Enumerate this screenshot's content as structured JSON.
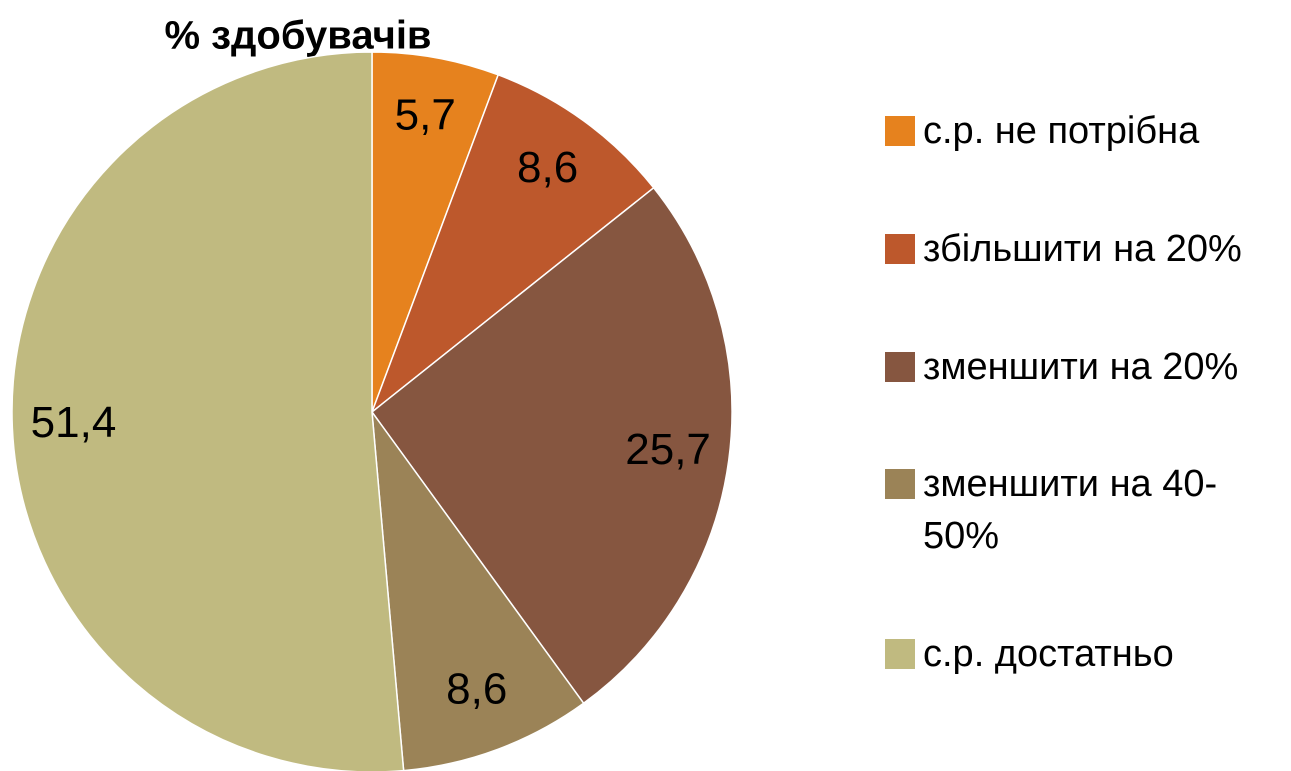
{
  "chart_data": {
    "type": "pie",
    "title": "% здобувачів",
    "categories": [
      "с.р. не потрібна",
      "збільшити на 20%",
      "зменшити на 20%",
      "зменшити на 40-50%",
      "с.р. достатньо"
    ],
    "values": [
      5.7,
      8.6,
      25.7,
      8.6,
      51.4
    ],
    "value_labels": [
      "5,7",
      "8,6",
      "25,7",
      "8,6",
      "51,4"
    ],
    "colors": [
      "#e6821e",
      "#bd582c",
      "#865640",
      "#9b8357",
      "#c0ba80"
    ],
    "legend": "right"
  }
}
